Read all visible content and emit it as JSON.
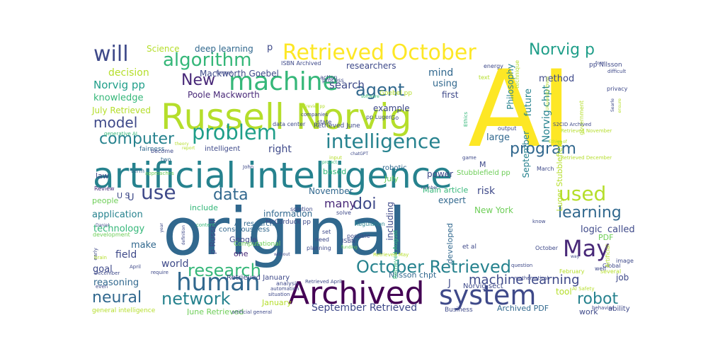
{
  "colors": {
    "background": "#ffffff",
    "palette": [
      "#fde725",
      "#b5de2b",
      "#6ece58",
      "#35b779",
      "#1f9e89",
      "#26828e",
      "#31688e",
      "#3e4989",
      "#482878",
      "#440154"
    ]
  },
  "words": [
    {
      "text": "original",
      "color": "#31688e"
    },
    {
      "text": "AI",
      "color": "#fde725"
    },
    {
      "text": "artificial intelligence",
      "color": "#26828e"
    },
    {
      "text": "Russell Norvig",
      "color": "#b5de2b"
    },
    {
      "text": "Archived",
      "color": "#440154"
    },
    {
      "text": "Retrieved October",
      "color": "#fde725"
    },
    {
      "text": "machine",
      "color": "#35b779"
    },
    {
      "text": "system",
      "color": "#3e4989"
    },
    {
      "text": "intelligence",
      "color": "#26828e"
    },
    {
      "text": "problem",
      "color": "#1f9e89"
    },
    {
      "text": "human",
      "color": "#31688e"
    },
    {
      "text": "May",
      "color": "#482878"
    },
    {
      "text": "will",
      "color": "#3e4989"
    },
    {
      "text": "algorithm",
      "color": "#35b779"
    },
    {
      "text": "Norvig p",
      "color": "#1f9e89"
    },
    {
      "text": "October Retrieved",
      "color": "#26828e"
    },
    {
      "text": "research",
      "color": "#35b779"
    },
    {
      "text": "use",
      "color": "#3e4989"
    },
    {
      "text": "used",
      "color": "#b5de2b"
    },
    {
      "text": "network",
      "color": "#26828e"
    },
    {
      "text": "data",
      "color": "#31688e"
    },
    {
      "text": "program",
      "color": "#31688e"
    },
    {
      "text": "agent",
      "color": "#31688e"
    },
    {
      "text": "computer",
      "color": "#26828e"
    },
    {
      "text": "model",
      "color": "#3e4989"
    },
    {
      "text": "neural",
      "color": "#31688e"
    },
    {
      "text": "robot",
      "color": "#26828e"
    },
    {
      "text": "New",
      "color": "#482878"
    },
    {
      "text": "doi",
      "color": "#3e4989"
    },
    {
      "text": "learning",
      "color": "#31688e"
    },
    {
      "text": "machine learning",
      "color": "#3e4989"
    },
    {
      "text": "September Retrieved",
      "color": "#3e4989"
    },
    {
      "text": "Norvig pp",
      "color": "#1f9e89"
    },
    {
      "text": "knowledge",
      "color": "#35b779"
    },
    {
      "text": "decision",
      "color": "#b5de2b"
    },
    {
      "text": "search",
      "color": "#3e4989"
    },
    {
      "text": "mind",
      "color": "#31688e"
    },
    {
      "text": "using",
      "color": "#31688e"
    },
    {
      "text": "researchers",
      "color": "#3e4989"
    },
    {
      "text": "Mackworth Goebel",
      "color": "#3e4989"
    },
    {
      "text": "Poole Mackworth",
      "color": "#482878"
    },
    {
      "text": "July Retrieved",
      "color": "#b5de2b"
    },
    {
      "text": "Science",
      "color": "#b5de2b"
    },
    {
      "text": "deep learning",
      "color": "#31688e"
    },
    {
      "text": "Philosophy",
      "color": "#26828e"
    },
    {
      "text": "future",
      "color": "#26828e"
    },
    {
      "text": "method",
      "color": "#3e4989"
    },
    {
      "text": "Norvig chpt",
      "color": "#26828e"
    },
    {
      "text": "September",
      "color": "#26828e"
    },
    {
      "text": "Luger Stubblefield",
      "color": "#b5de2b"
    },
    {
      "text": "Stubblefield pp",
      "color": "#6ece58"
    },
    {
      "text": "large",
      "color": "#31688e"
    },
    {
      "text": "first",
      "color": "#3e4989"
    },
    {
      "text": "example",
      "color": "#3e4989"
    },
    {
      "text": "right",
      "color": "#3e4989"
    },
    {
      "text": "law",
      "color": "#3e4989"
    },
    {
      "text": "intelligent",
      "color": "#3e4989"
    },
    {
      "text": "robotic",
      "color": "#31688e"
    },
    {
      "text": "power",
      "color": "#3e4989"
    },
    {
      "text": "July",
      "color": "#6ece58"
    },
    {
      "text": "based",
      "color": "#35b779"
    },
    {
      "text": "November",
      "color": "#31688e"
    },
    {
      "text": "Main article",
      "color": "#35b779"
    },
    {
      "text": "risk",
      "color": "#3e4989"
    },
    {
      "text": "many",
      "color": "#482878"
    },
    {
      "text": "information",
      "color": "#31688e"
    },
    {
      "text": "expert",
      "color": "#31688e"
    },
    {
      "text": "New York",
      "color": "#6ece58"
    },
    {
      "text": "application",
      "color": "#26828e"
    },
    {
      "text": "technology",
      "color": "#35b779"
    },
    {
      "text": "people",
      "color": "#6ece58"
    },
    {
      "text": "make",
      "color": "#31688e"
    },
    {
      "text": "field",
      "color": "#3e4989"
    },
    {
      "text": "goal",
      "color": "#3e4989"
    },
    {
      "text": "world",
      "color": "#3e4989"
    },
    {
      "text": "reasoning",
      "color": "#31688e"
    },
    {
      "text": "include",
      "color": "#35b779"
    },
    {
      "text": "consciousness",
      "color": "#31688e"
    },
    {
      "text": "Google",
      "color": "#3e4989"
    },
    {
      "text": "one",
      "color": "#482878"
    },
    {
      "text": "Computational",
      "color": "#6ece58"
    },
    {
      "text": "p Russell",
      "color": "#3e4989"
    },
    {
      "text": "McCorduck pp",
      "color": "#3e4989"
    },
    {
      "text": "including",
      "color": "#3e4989"
    },
    {
      "text": "developed",
      "color": "#31688e"
    },
    {
      "text": "PDF",
      "color": "#6ece58"
    },
    {
      "text": "called",
      "color": "#3e4989"
    },
    {
      "text": "logic",
      "color": "#3e4989"
    },
    {
      "text": "job",
      "color": "#3e4989"
    },
    {
      "text": "tool",
      "color": "#b5de2b"
    },
    {
      "text": "Archived PDF",
      "color": "#31688e"
    },
    {
      "text": "work",
      "color": "#3e4989"
    },
    {
      "text": "January",
      "color": "#b5de2b"
    },
    {
      "text": "Nilsson chpt",
      "color": "#31688e"
    },
    {
      "text": "Retrieved January",
      "color": "#3e4989"
    },
    {
      "text": "June Retrieved",
      "color": "#6ece58"
    },
    {
      "text": "Norvig sect",
      "color": "#3e4989"
    },
    {
      "text": "Retrieved June",
      "color": "#3e4989"
    },
    {
      "text": "Retrieved August",
      "color": "#35b779"
    },
    {
      "text": "AI research",
      "color": "#31688e"
    },
    {
      "text": "Business",
      "color": "#3e4989"
    },
    {
      "text": "ability",
      "color": "#3e4989"
    },
    {
      "text": "general intelligence",
      "color": "#b5de2b"
    },
    {
      "text": "data center",
      "color": "#3e4989"
    },
    {
      "text": "pp Luger",
      "color": "#3e4989"
    },
    {
      "text": "Goebel pp",
      "color": "#b5de2b"
    },
    {
      "text": "ISBN Archived",
      "color": "#3e4989"
    },
    {
      "text": "pp Nilsson",
      "color": "#3e4989"
    },
    {
      "text": "technique",
      "color": "#b5de2b"
    },
    {
      "text": "Review",
      "color": "#482878"
    },
    {
      "text": "generative AI",
      "color": "#35b779"
    },
    {
      "text": "fairness",
      "color": "#31688e"
    },
    {
      "text": "term",
      "color": "#31688e"
    },
    {
      "text": "two",
      "color": "#31688e"
    },
    {
      "text": "become",
      "color": "#3e4989"
    },
    {
      "text": "solve",
      "color": "#3e4989"
    },
    {
      "text": "solution",
      "color": "#3e4989"
    },
    {
      "text": "content",
      "color": "#35b779"
    },
    {
      "text": "development",
      "color": "#6ece58"
    },
    {
      "text": "Regulation",
      "color": "#26828e"
    },
    {
      "text": "need",
      "color": "#3e4989"
    },
    {
      "text": "set",
      "color": "#3e4989"
    },
    {
      "text": "ISBN",
      "color": "#3e4989"
    },
    {
      "text": "possible",
      "color": "#3e4989"
    },
    {
      "text": "planning",
      "color": "#3e4989"
    },
    {
      "text": "process",
      "color": "#3e4989"
    },
    {
      "text": "Go",
      "color": "#3e4989"
    },
    {
      "text": "action",
      "color": "#3e4989"
    },
    {
      "text": "energy",
      "color": "#3e4989"
    },
    {
      "text": "formal",
      "color": "#3e4989"
    },
    {
      "text": "text",
      "color": "#b5de2b"
    },
    {
      "text": "Retrieved November",
      "color": "#b5de2b"
    },
    {
      "text": "Retrieved December",
      "color": "#b5de2b"
    },
    {
      "text": "Global",
      "color": "#3e4989"
    },
    {
      "text": "February",
      "color": "#b5de2b"
    },
    {
      "text": "know",
      "color": "#3e4989"
    },
    {
      "text": "October",
      "color": "#3e4989"
    },
    {
      "text": "mathematical",
      "color": "#3e4989"
    },
    {
      "text": "question",
      "color": "#3e4989"
    },
    {
      "text": "Artificial",
      "color": "#b5de2b"
    },
    {
      "text": "AI Safety",
      "color": "#b5de2b"
    },
    {
      "text": "behavior",
      "color": "#3e4989"
    },
    {
      "text": "several",
      "color": "#b5de2b"
    },
    {
      "text": "well",
      "color": "#3e4989"
    },
    {
      "text": "image",
      "color": "#3e4989"
    },
    {
      "text": "privacy",
      "color": "#3e4989"
    },
    {
      "text": "difficult",
      "color": "#3e4989"
    },
    {
      "text": "government",
      "color": "#b5de2b"
    },
    {
      "text": "S2CID Archived",
      "color": "#3e4989"
    },
    {
      "text": "Ethics",
      "color": "#35b779"
    },
    {
      "text": "output",
      "color": "#3e4989"
    },
    {
      "text": "March",
      "color": "#3e4989"
    },
    {
      "text": "companies",
      "color": "#3e4989"
    },
    {
      "text": "state",
      "color": "#3e4989"
    },
    {
      "text": "software",
      "color": "#35b779"
    },
    {
      "text": "Crevier pp",
      "color": "#b5de2b"
    },
    {
      "text": "chatGPT",
      "color": "#3e4989"
    },
    {
      "text": "project",
      "color": "#35b779"
    },
    {
      "text": "input",
      "color": "#b5de2b"
    },
    {
      "text": "approaches",
      "color": "#6ece58"
    },
    {
      "text": "John",
      "color": "#3e4989"
    },
    {
      "text": "Daniel",
      "color": "#3e4989"
    },
    {
      "text": "early",
      "color": "#3e4989"
    },
    {
      "text": "April",
      "color": "#3e4989"
    },
    {
      "text": "December",
      "color": "#3e4989"
    },
    {
      "text": "even",
      "color": "#3e4989"
    },
    {
      "text": "require",
      "color": "#3e4989"
    },
    {
      "text": "Retrieved May",
      "color": "#b5de2b"
    },
    {
      "text": "Retrieved April",
      "color": "#3e4989"
    },
    {
      "text": "analysis",
      "color": "#3e4989"
    },
    {
      "text": "automation",
      "color": "#3e4989"
    },
    {
      "text": "situation",
      "color": "#3e4989"
    },
    {
      "text": "artificial general",
      "color": "#3e4989"
    },
    {
      "text": "without",
      "color": "#3e4989"
    },
    {
      "text": "funding",
      "color": "#6ece58"
    },
    {
      "text": "et al",
      "color": "#3e4989"
    },
    {
      "text": "game",
      "color": "#3e4989"
    },
    {
      "text": "number",
      "color": "#3e4989"
    },
    {
      "text": "way",
      "color": "#3e4989"
    },
    {
      "text": "brain",
      "color": "#b5de2b"
    },
    {
      "text": "year",
      "color": "#3e4989"
    },
    {
      "text": "Ethics of",
      "color": "#b5de2b"
    },
    {
      "text": "form",
      "color": "#3e4989"
    },
    {
      "text": "University Press",
      "color": "#b5de2b"
    },
    {
      "text": "Searle",
      "color": "#3e4989"
    },
    {
      "text": "ensure",
      "color": "#b5de2b"
    },
    {
      "text": "report",
      "color": "#b5de2b"
    },
    {
      "text": "theory",
      "color": "#b5de2b"
    },
    {
      "text": "definition",
      "color": "#3e4989"
    },
    {
      "text": "M",
      "color": "#3e4989"
    },
    {
      "text": "U S",
      "color": "#3e4989"
    },
    {
      "text": "U",
      "color": "#3e4989"
    },
    {
      "text": "J",
      "color": "#3e4989"
    },
    {
      "text": "p",
      "color": "#3e4989"
    }
  ]
}
